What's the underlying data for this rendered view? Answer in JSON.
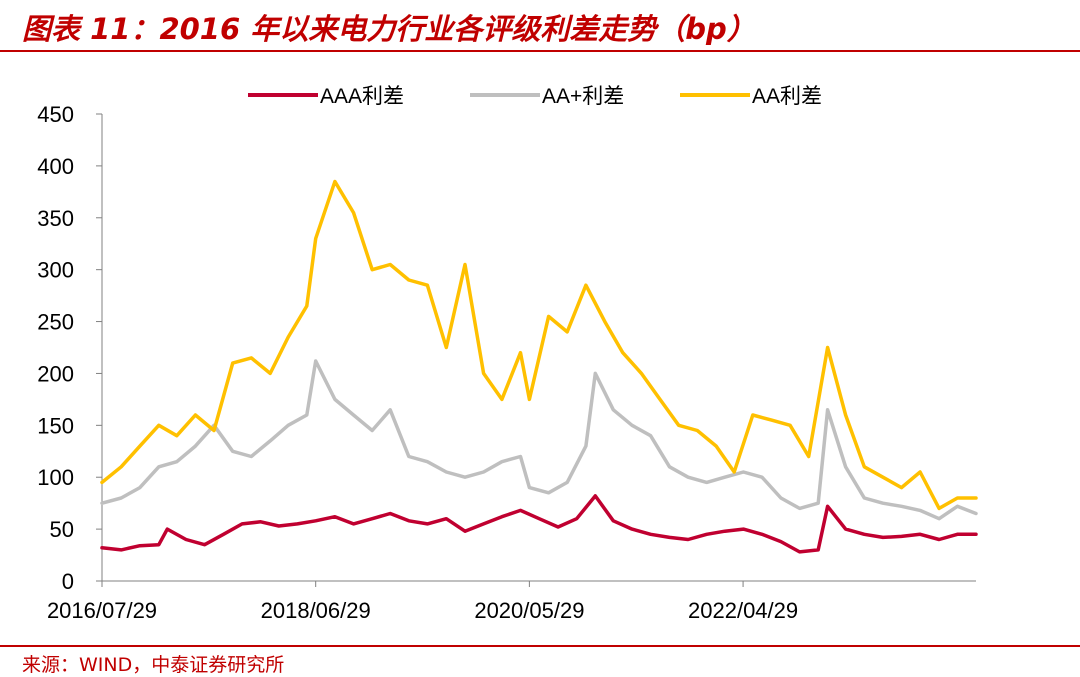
{
  "header": {
    "title": "图表 11：2016 年以来电力行业各评级利差走势（bp）"
  },
  "footer": {
    "source": "来源：WIND，中泰证券研究所"
  },
  "chart_data": {
    "type": "line",
    "title": "",
    "xlabel": "",
    "ylabel": "",
    "ylim": [
      0,
      450
    ],
    "yticks": [
      0,
      50,
      100,
      150,
      200,
      250,
      300,
      350,
      400,
      450
    ],
    "xticks": [
      "2016/07/29",
      "2018/06/29",
      "2020/05/29",
      "2022/04/29"
    ],
    "xrange": [
      "2016/07/29",
      "2024/05/31"
    ],
    "grid": false,
    "legend": "top",
    "series": [
      {
        "name": "AAA利差",
        "color": "#c00030",
        "points": [
          [
            "2016/07/29",
            32
          ],
          [
            "2016/09/30",
            30
          ],
          [
            "2016/11/30",
            34
          ],
          [
            "2017/01/31",
            35
          ],
          [
            "2017/02/28",
            50
          ],
          [
            "2017/04/30",
            40
          ],
          [
            "2017/06/30",
            35
          ],
          [
            "2017/08/31",
            45
          ],
          [
            "2017/10/31",
            55
          ],
          [
            "2017/12/31",
            57
          ],
          [
            "2018/02/28",
            53
          ],
          [
            "2018/04/30",
            55
          ],
          [
            "2018/06/29",
            58
          ],
          [
            "2018/08/31",
            62
          ],
          [
            "2018/10/31",
            55
          ],
          [
            "2018/12/31",
            60
          ],
          [
            "2019/02/28",
            65
          ],
          [
            "2019/04/30",
            58
          ],
          [
            "2019/06/30",
            55
          ],
          [
            "2019/08/31",
            60
          ],
          [
            "2019/10/31",
            48
          ],
          [
            "2019/12/31",
            55
          ],
          [
            "2020/02/29",
            62
          ],
          [
            "2020/04/30",
            68
          ],
          [
            "2020/06/30",
            60
          ],
          [
            "2020/08/31",
            52
          ],
          [
            "2020/10/31",
            60
          ],
          [
            "2020/12/31",
            82
          ],
          [
            "2021/02/28",
            58
          ],
          [
            "2021/04/30",
            50
          ],
          [
            "2021/06/30",
            45
          ],
          [
            "2021/08/31",
            42
          ],
          [
            "2021/10/31",
            40
          ],
          [
            "2021/12/31",
            45
          ],
          [
            "2022/02/28",
            48
          ],
          [
            "2022/04/30",
            50
          ],
          [
            "2022/06/30",
            45
          ],
          [
            "2022/08/31",
            38
          ],
          [
            "2022/10/31",
            28
          ],
          [
            "2022/12/31",
            30
          ],
          [
            "2023/01/31",
            72
          ],
          [
            "2023/03/31",
            50
          ],
          [
            "2023/05/31",
            45
          ],
          [
            "2023/07/31",
            42
          ],
          [
            "2023/09/30",
            43
          ],
          [
            "2023/11/30",
            45
          ],
          [
            "2024/01/31",
            40
          ],
          [
            "2024/03/31",
            45
          ],
          [
            "2024/05/31",
            45
          ]
        ]
      },
      {
        "name": "AA+利差",
        "color": "#bfbfbf",
        "points": [
          [
            "2016/07/29",
            75
          ],
          [
            "2016/09/30",
            80
          ],
          [
            "2016/11/30",
            90
          ],
          [
            "2017/01/31",
            110
          ],
          [
            "2017/03/31",
            115
          ],
          [
            "2017/05/31",
            130
          ],
          [
            "2017/07/31",
            150
          ],
          [
            "2017/09/30",
            125
          ],
          [
            "2017/11/30",
            120
          ],
          [
            "2018/01/31",
            135
          ],
          [
            "2018/03/31",
            150
          ],
          [
            "2018/05/31",
            160
          ],
          [
            "2018/06/29",
            212
          ],
          [
            "2018/08/31",
            175
          ],
          [
            "2018/10/31",
            160
          ],
          [
            "2018/12/31",
            145
          ],
          [
            "2019/02/28",
            165
          ],
          [
            "2019/04/30",
            120
          ],
          [
            "2019/06/30",
            115
          ],
          [
            "2019/08/31",
            105
          ],
          [
            "2019/10/31",
            100
          ],
          [
            "2019/12/31",
            105
          ],
          [
            "2020/02/29",
            115
          ],
          [
            "2020/04/30",
            120
          ],
          [
            "2020/05/29",
            90
          ],
          [
            "2020/07/31",
            85
          ],
          [
            "2020/09/30",
            95
          ],
          [
            "2020/11/30",
            130
          ],
          [
            "2020/12/31",
            200
          ],
          [
            "2021/02/28",
            165
          ],
          [
            "2021/04/30",
            150
          ],
          [
            "2021/06/30",
            140
          ],
          [
            "2021/08/31",
            110
          ],
          [
            "2021/10/31",
            100
          ],
          [
            "2021/12/31",
            95
          ],
          [
            "2022/02/28",
            100
          ],
          [
            "2022/04/30",
            105
          ],
          [
            "2022/06/30",
            100
          ],
          [
            "2022/08/31",
            80
          ],
          [
            "2022/10/31",
            70
          ],
          [
            "2022/12/31",
            75
          ],
          [
            "2023/01/31",
            165
          ],
          [
            "2023/03/31",
            110
          ],
          [
            "2023/05/31",
            80
          ],
          [
            "2023/07/31",
            75
          ],
          [
            "2023/09/30",
            72
          ],
          [
            "2023/11/30",
            68
          ],
          [
            "2024/01/31",
            60
          ],
          [
            "2024/03/31",
            72
          ],
          [
            "2024/05/31",
            65
          ]
        ]
      },
      {
        "name": "AA利差",
        "color": "#ffc000",
        "points": [
          [
            "2016/07/29",
            95
          ],
          [
            "2016/09/30",
            110
          ],
          [
            "2016/11/30",
            130
          ],
          [
            "2017/01/31",
            150
          ],
          [
            "2017/03/31",
            140
          ],
          [
            "2017/05/31",
            160
          ],
          [
            "2017/07/31",
            145
          ],
          [
            "2017/09/30",
            210
          ],
          [
            "2017/11/30",
            215
          ],
          [
            "2018/01/31",
            200
          ],
          [
            "2018/03/31",
            235
          ],
          [
            "2018/05/31",
            265
          ],
          [
            "2018/06/29",
            330
          ],
          [
            "2018/08/31",
            385
          ],
          [
            "2018/10/31",
            355
          ],
          [
            "2018/12/31",
            300
          ],
          [
            "2019/02/28",
            305
          ],
          [
            "2019/04/30",
            290
          ],
          [
            "2019/06/30",
            285
          ],
          [
            "2019/08/31",
            225
          ],
          [
            "2019/10/31",
            305
          ],
          [
            "2019/12/31",
            200
          ],
          [
            "2020/02/29",
            175
          ],
          [
            "2020/04/30",
            220
          ],
          [
            "2020/05/29",
            175
          ],
          [
            "2020/07/31",
            255
          ],
          [
            "2020/09/30",
            240
          ],
          [
            "2020/11/30",
            285
          ],
          [
            "2021/01/31",
            250
          ],
          [
            "2021/03/31",
            220
          ],
          [
            "2021/05/31",
            200
          ],
          [
            "2021/07/31",
            175
          ],
          [
            "2021/09/30",
            150
          ],
          [
            "2021/11/30",
            145
          ],
          [
            "2022/01/31",
            130
          ],
          [
            "2022/03/31",
            105
          ],
          [
            "2022/05/31",
            160
          ],
          [
            "2022/07/31",
            155
          ],
          [
            "2022/09/30",
            150
          ],
          [
            "2022/11/30",
            120
          ],
          [
            "2023/01/31",
            225
          ],
          [
            "2023/03/31",
            160
          ],
          [
            "2023/05/31",
            110
          ],
          [
            "2023/07/31",
            100
          ],
          [
            "2023/09/30",
            90
          ],
          [
            "2023/11/30",
            105
          ],
          [
            "2024/01/31",
            70
          ],
          [
            "2024/03/31",
            80
          ],
          [
            "2024/05/31",
            80
          ]
        ]
      }
    ]
  }
}
